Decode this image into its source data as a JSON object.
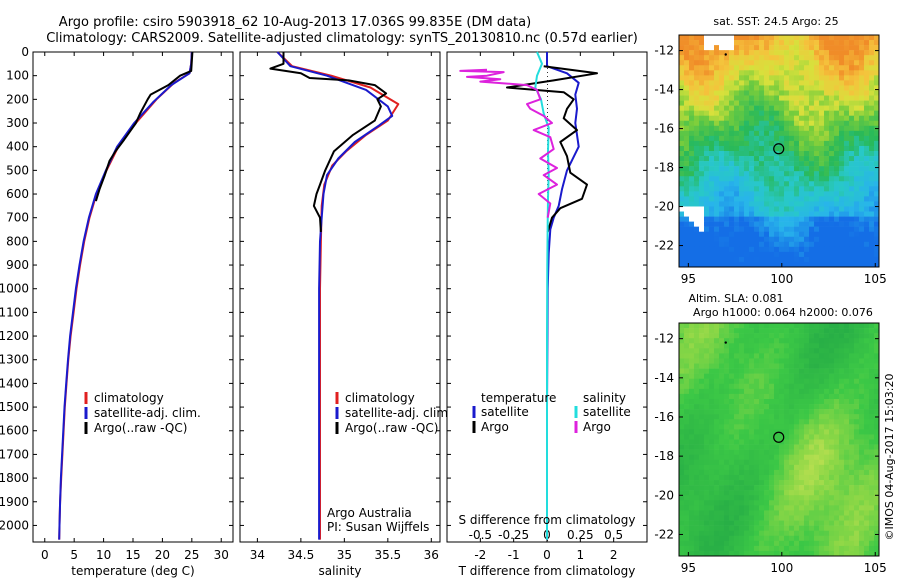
{
  "header": {
    "title_line1": "Argo profile: csiro 5903918_62 10-Aug-2013 17.036S 99.835E (DM data)",
    "title_line2": "Climatology: CARS2009. Satellite-adjusted climatology: synTS_20130810.nc (0.57d earlier)"
  },
  "side_note": "©IMOS 04-Aug-2017 15:03:20",
  "colors": {
    "climatology": "#e02020",
    "satellite": "#1a1acc",
    "argo": "#000000",
    "salinity_satellite": "#22dddd",
    "salinity_argo": "#dd22dd"
  },
  "chart_data": [
    {
      "type": "line",
      "name": "temperature",
      "xlabel": "temperature (deg C)",
      "ylabel": "",
      "xlim": [
        -2,
        32
      ],
      "ylim": [
        2070,
        0
      ],
      "xticks": [
        0,
        5,
        10,
        15,
        20,
        25,
        30
      ],
      "yticks": [
        0,
        100,
        200,
        300,
        400,
        500,
        600,
        700,
        800,
        900,
        1000,
        1100,
        1200,
        1300,
        1400,
        1500,
        1600,
        1700,
        1800,
        1900,
        2000
      ],
      "legend": [
        "climatology",
        "satellite-adj. clim.",
        "Argo(..raw -QC)"
      ],
      "series": [
        {
          "name": "climatology",
          "color": "#e02020",
          "points": [
            [
              25.0,
              0
            ],
            [
              24.9,
              50
            ],
            [
              24.6,
              90
            ],
            [
              22,
              130
            ],
            [
              19,
              200
            ],
            [
              15.5,
              300
            ],
            [
              12.5,
              400
            ],
            [
              10.5,
              500
            ],
            [
              8.8,
              600
            ],
            [
              7.6,
              700
            ],
            [
              6.7,
              800
            ],
            [
              6.0,
              900
            ],
            [
              5.4,
              1000
            ],
            [
              4.9,
              1100
            ],
            [
              4.4,
              1200
            ],
            [
              4.0,
              1300
            ],
            [
              3.7,
              1400
            ],
            [
              3.4,
              1500
            ],
            [
              3.2,
              1600
            ],
            [
              3.0,
              1700
            ],
            [
              2.8,
              1800
            ],
            [
              2.6,
              1900
            ],
            [
              2.5,
              2000
            ],
            [
              2.45,
              2060
            ]
          ]
        },
        {
          "name": "satellite-adj. clim.",
          "color": "#1a1acc",
          "points": [
            [
              25.0,
              0
            ],
            [
              24.9,
              50
            ],
            [
              24.6,
              90
            ],
            [
              21.5,
              140
            ],
            [
              18.5,
              210
            ],
            [
              15.2,
              300
            ],
            [
              12.3,
              400
            ],
            [
              10.4,
              500
            ],
            [
              8.7,
              600
            ],
            [
              7.5,
              700
            ],
            [
              6.6,
              800
            ],
            [
              5.9,
              900
            ],
            [
              5.3,
              1000
            ],
            [
              4.8,
              1100
            ],
            [
              4.3,
              1200
            ],
            [
              3.95,
              1300
            ],
            [
              3.65,
              1400
            ],
            [
              3.35,
              1500
            ],
            [
              3.15,
              1600
            ],
            [
              2.95,
              1700
            ],
            [
              2.75,
              1800
            ],
            [
              2.6,
              1900
            ],
            [
              2.5,
              2000
            ],
            [
              2.45,
              2060
            ]
          ]
        },
        {
          "name": "Argo(..raw -QC)",
          "color": "#000000",
          "points": [
            [
              25.1,
              0
            ],
            [
              24.9,
              80
            ],
            [
              23,
              100
            ],
            [
              21,
              140
            ],
            [
              18,
              180
            ],
            [
              17.5,
              200
            ],
            [
              16.2,
              260
            ],
            [
              15.5,
              300
            ],
            [
              13.5,
              370
            ],
            [
              12,
              420
            ],
            [
              11,
              460
            ],
            [
              10.2,
              520
            ],
            [
              9.3,
              580
            ],
            [
              8.7,
              630
            ]
          ]
        }
      ]
    },
    {
      "type": "line",
      "name": "salinity",
      "xlabel": "salinity",
      "ylabel": "",
      "xlim": [
        33.8,
        36.1
      ],
      "ylim": [
        2070,
        0
      ],
      "xticks": [
        34,
        34.5,
        35,
        35.5,
        36
      ],
      "legend": [
        "climatology",
        "satellite-adj. clim.",
        "Argo(..raw -QC)"
      ],
      "annotation_line1": "Argo Australia",
      "annotation_line2": "PI: Susan Wijffels",
      "series": [
        {
          "name": "climatology",
          "color": "#e02020",
          "points": [
            [
              34.23,
              0
            ],
            [
              34.4,
              60
            ],
            [
              34.85,
              100
            ],
            [
              35.3,
              150
            ],
            [
              35.62,
              220
            ],
            [
              35.5,
              290
            ],
            [
              35.25,
              350
            ],
            [
              35.02,
              420
            ],
            [
              34.86,
              480
            ],
            [
              34.77,
              560
            ],
            [
              34.74,
              650
            ],
            [
              34.73,
              800
            ],
            [
              34.72,
              1000
            ],
            [
              34.72,
              1200
            ],
            [
              34.72,
              1500
            ],
            [
              34.72,
              1800
            ],
            [
              34.72,
              2000
            ],
            [
              34.72,
              2060
            ]
          ]
        },
        {
          "name": "satellite-adj. clim.",
          "color": "#1a1acc",
          "points": [
            [
              34.23,
              0
            ],
            [
              34.38,
              60
            ],
            [
              34.8,
              100
            ],
            [
              35.25,
              160
            ],
            [
              35.5,
              230
            ],
            [
              35.55,
              270
            ],
            [
              35.4,
              310
            ],
            [
              35.12,
              380
            ],
            [
              34.93,
              450
            ],
            [
              34.8,
              520
            ],
            [
              34.76,
              600
            ],
            [
              34.74,
              700
            ],
            [
              34.72,
              800
            ],
            [
              34.71,
              1000
            ],
            [
              34.71,
              1200
            ],
            [
              34.71,
              1500
            ],
            [
              34.71,
              1800
            ],
            [
              34.71,
              2000
            ],
            [
              34.71,
              2060
            ]
          ]
        },
        {
          "name": "Argo(..raw -QC)",
          "color": "#000000",
          "points": [
            [
              34.3,
              0
            ],
            [
              34.3,
              50
            ],
            [
              34.15,
              70
            ],
            [
              34.5,
              90
            ],
            [
              34.6,
              110
            ],
            [
              35.05,
              120
            ],
            [
              35.35,
              140
            ],
            [
              35.48,
              175
            ],
            [
              35.38,
              200
            ],
            [
              35.42,
              230
            ],
            [
              35.35,
              290
            ],
            [
              35.1,
              350
            ],
            [
              34.88,
              420
            ],
            [
              34.78,
              500
            ],
            [
              34.72,
              560
            ],
            [
              34.68,
              600
            ],
            [
              34.65,
              650
            ],
            [
              34.72,
              700
            ],
            [
              34.73,
              760
            ]
          ]
        }
      ]
    },
    {
      "type": "line",
      "name": "difference",
      "xlabel": "T difference from climatology",
      "top_label": "S difference from climatology",
      "xlim": [
        -3,
        3
      ],
      "ylim": [
        2070,
        0
      ],
      "t_ticks": [
        -2,
        -1,
        0,
        1,
        2
      ],
      "s_ticks": [
        {
          "value": -0.5,
          "label": "-0.5"
        },
        {
          "value": -0.25,
          "label": "-0.25"
        },
        {
          "value": 0,
          "label": "0"
        },
        {
          "value": 0.25,
          "label": "0.25"
        },
        {
          "value": 0.5,
          "label": "0.5"
        }
      ],
      "legend_titles": [
        "temperature",
        "salinity"
      ],
      "legend": [
        {
          "label": "satellite",
          "color": "#1a1acc"
        },
        {
          "label": "Argo",
          "color": "#000000"
        },
        {
          "label": "satellite",
          "color": "#22dddd"
        },
        {
          "label": "Argo",
          "color": "#dd22dd"
        }
      ],
      "series": [
        {
          "name": "temperature satellite",
          "color": "#1a1acc",
          "points": [
            [
              0,
              0
            ],
            [
              0,
              60
            ],
            [
              0.6,
              90
            ],
            [
              0.95,
              130
            ],
            [
              0.85,
              180
            ],
            [
              0.9,
              240
            ],
            [
              0.85,
              300
            ],
            [
              0.95,
              400
            ],
            [
              0.6,
              500
            ],
            [
              0.45,
              580
            ],
            [
              0.35,
              650
            ],
            [
              0.2,
              700
            ],
            [
              0.1,
              750
            ],
            [
              0.05,
              850
            ],
            [
              0.02,
              1000
            ],
            [
              0,
              1500
            ],
            [
              0,
              2060
            ]
          ]
        },
        {
          "name": "temperature Argo",
          "color": "#000000",
          "points": [
            [
              -0.1,
              60
            ],
            [
              1.5,
              90
            ],
            [
              0.2,
              120
            ],
            [
              -1.2,
              150
            ],
            [
              0.5,
              170
            ],
            [
              0.8,
              200
            ],
            [
              0.6,
              240
            ],
            [
              0.5,
              280
            ],
            [
              0.9,
              330
            ],
            [
              0.4,
              380
            ],
            [
              0.6,
              440
            ],
            [
              0.7,
              510
            ],
            [
              1.2,
              560
            ],
            [
              1.05,
              620
            ],
            [
              0.4,
              660
            ],
            [
              0.15,
              700
            ],
            [
              0.02,
              760
            ]
          ]
        },
        {
          "name": "salinity satellite",
          "color": "#22dddd",
          "points": [
            [
              -0.3,
              0
            ],
            [
              -0.15,
              50
            ],
            [
              -0.3,
              100
            ],
            [
              -0.35,
              150
            ],
            [
              -0.18,
              200
            ],
            [
              -0.1,
              260
            ],
            [
              0.05,
              320
            ],
            [
              0.03,
              420
            ],
            [
              0.05,
              520
            ],
            [
              0.03,
              620
            ],
            [
              0.02,
              720
            ],
            [
              0.01,
              900
            ],
            [
              0,
              1200
            ],
            [
              0,
              1600
            ],
            [
              0,
              2060
            ]
          ]
        },
        {
          "name": "salinity Argo",
          "color": "#dd22dd",
          "points": [
            [
              -1.8,
              75
            ],
            [
              -2.6,
              80
            ],
            [
              -1.3,
              85
            ],
            [
              -1.8,
              100
            ],
            [
              -2.4,
              105
            ],
            [
              -1.4,
              115
            ],
            [
              -2.0,
              125
            ],
            [
              -0.6,
              140
            ],
            [
              -0.3,
              160
            ],
            [
              -0.2,
              200
            ],
            [
              -0.6,
              220
            ],
            [
              -0.5,
              240
            ],
            [
              -0.1,
              270
            ],
            [
              0.15,
              300
            ],
            [
              -0.4,
              330
            ],
            [
              0.1,
              360
            ],
            [
              0.2,
              410
            ],
            [
              -0.2,
              450
            ],
            [
              0.3,
              490
            ],
            [
              -0.1,
              520
            ],
            [
              0.3,
              560
            ],
            [
              -0.25,
              600
            ],
            [
              0.1,
              640
            ],
            [
              0.02,
              700
            ]
          ]
        }
      ]
    },
    {
      "type": "heatmap",
      "name": "sst_map",
      "title": "sat. SST: 24.5 Argo: 25",
      "xticks": [
        95,
        100,
        105
      ],
      "yticks": [
        -12,
        -14,
        -16,
        -18,
        -20,
        -22
      ],
      "xlim": [
        94.5,
        105.2
      ],
      "ylim": [
        -23.1,
        -11.2
      ],
      "marker_lon": 99.835,
      "marker_lat": -17.036
    },
    {
      "type": "heatmap",
      "name": "sla_map",
      "title_line1": "Altim. SLA: 0.081",
      "title_line2": "Argo h1000: 0.064 h2000: 0.076",
      "xticks": [
        95,
        100,
        105
      ],
      "yticks": [
        -12,
        -14,
        -16,
        -18,
        -20,
        -22
      ],
      "xlim": [
        94.5,
        105.2
      ],
      "ylim": [
        -23.1,
        -11.2
      ],
      "marker_lon": 99.835,
      "marker_lat": -17.036
    }
  ]
}
